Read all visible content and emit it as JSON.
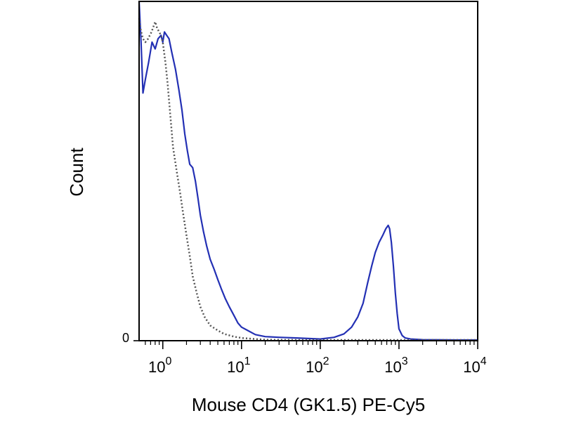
{
  "chart_data": {
    "type": "line",
    "xlabel": "Mouse CD4 (GK1.5) PE-Cy5",
    "ylabel": "Count",
    "x_scale": "log",
    "xlim": [
      0.5,
      10000
    ],
    "ylim": [
      0,
      100
    ],
    "grid": false,
    "legend": "none",
    "x_ticks": [
      {
        "value": 1,
        "base": "10",
        "exp": "0"
      },
      {
        "value": 10,
        "base": "10",
        "exp": "1"
      },
      {
        "value": 100,
        "base": "10",
        "exp": "2"
      },
      {
        "value": 1000,
        "base": "10",
        "exp": "3"
      },
      {
        "value": 10000,
        "base": "10",
        "exp": "4"
      }
    ],
    "y_ticks": [
      {
        "value": 0,
        "label": "0"
      }
    ],
    "series": [
      {
        "color": "#2330b4",
        "style": "solid",
        "points": [
          [
            0.5,
            100
          ],
          [
            0.53,
            88
          ],
          [
            0.56,
            73
          ],
          [
            0.6,
            77
          ],
          [
            0.66,
            82
          ],
          [
            0.73,
            88
          ],
          [
            0.8,
            86
          ],
          [
            0.87,
            89
          ],
          [
            0.95,
            90
          ],
          [
            1.0,
            88
          ],
          [
            1.05,
            91
          ],
          [
            1.12,
            90
          ],
          [
            1.2,
            89
          ],
          [
            1.3,
            85
          ],
          [
            1.45,
            80
          ],
          [
            1.6,
            74
          ],
          [
            1.75,
            68
          ],
          [
            1.9,
            61
          ],
          [
            2.05,
            56
          ],
          [
            2.2,
            52
          ],
          [
            2.4,
            51
          ],
          [
            2.6,
            47
          ],
          [
            2.8,
            42
          ],
          [
            3.0,
            37
          ],
          [
            3.3,
            32
          ],
          [
            3.6,
            28
          ],
          [
            4.0,
            24
          ],
          [
            4.5,
            21
          ],
          [
            5.0,
            18
          ],
          [
            5.6,
            15
          ],
          [
            6.2,
            12.5
          ],
          [
            7.0,
            10
          ],
          [
            8.0,
            7.5
          ],
          [
            9.0,
            5.2
          ],
          [
            10,
            4
          ],
          [
            12,
            3
          ],
          [
            15,
            1.8
          ],
          [
            20,
            1.2
          ],
          [
            30,
            1
          ],
          [
            50,
            0.8
          ],
          [
            80,
            0.6
          ],
          [
            100,
            0.5
          ],
          [
            150,
            1
          ],
          [
            200,
            2
          ],
          [
            250,
            4
          ],
          [
            300,
            7
          ],
          [
            350,
            11
          ],
          [
            400,
            17
          ],
          [
            450,
            22
          ],
          [
            500,
            26
          ],
          [
            560,
            29
          ],
          [
            620,
            31
          ],
          [
            680,
            33
          ],
          [
            730,
            34
          ],
          [
            760,
            33
          ],
          [
            800,
            29
          ],
          [
            850,
            22
          ],
          [
            900,
            14
          ],
          [
            950,
            8
          ],
          [
            1000,
            3.5
          ],
          [
            1100,
            1.5
          ],
          [
            1200,
            0.8
          ],
          [
            1400,
            0.5
          ],
          [
            2000,
            0.3
          ],
          [
            5000,
            0.2
          ],
          [
            10000,
            0.2
          ]
        ]
      },
      {
        "color": "#555555",
        "style": "dotted",
        "points": [
          [
            0.5,
            95
          ],
          [
            0.52,
            92
          ],
          [
            0.56,
            89
          ],
          [
            0.6,
            88
          ],
          [
            0.65,
            89
          ],
          [
            0.72,
            91
          ],
          [
            0.8,
            94
          ],
          [
            0.85,
            92
          ],
          [
            0.9,
            91
          ],
          [
            0.95,
            90
          ],
          [
            1.0,
            88
          ],
          [
            1.08,
            82
          ],
          [
            1.15,
            76
          ],
          [
            1.25,
            66
          ],
          [
            1.35,
            57
          ],
          [
            1.5,
            50
          ],
          [
            1.65,
            44
          ],
          [
            1.8,
            38
          ],
          [
            2.0,
            31
          ],
          [
            2.2,
            25
          ],
          [
            2.4,
            19
          ],
          [
            2.7,
            14
          ],
          [
            3.0,
            10
          ],
          [
            3.4,
            7
          ],
          [
            4.0,
            4.5
          ],
          [
            5.0,
            3
          ],
          [
            6.0,
            2
          ],
          [
            8.0,
            1.2
          ],
          [
            10,
            0.8
          ],
          [
            15,
            0.5
          ],
          [
            20,
            0.3
          ],
          [
            50,
            0.2
          ],
          [
            10000,
            0.2
          ]
        ]
      }
    ]
  }
}
